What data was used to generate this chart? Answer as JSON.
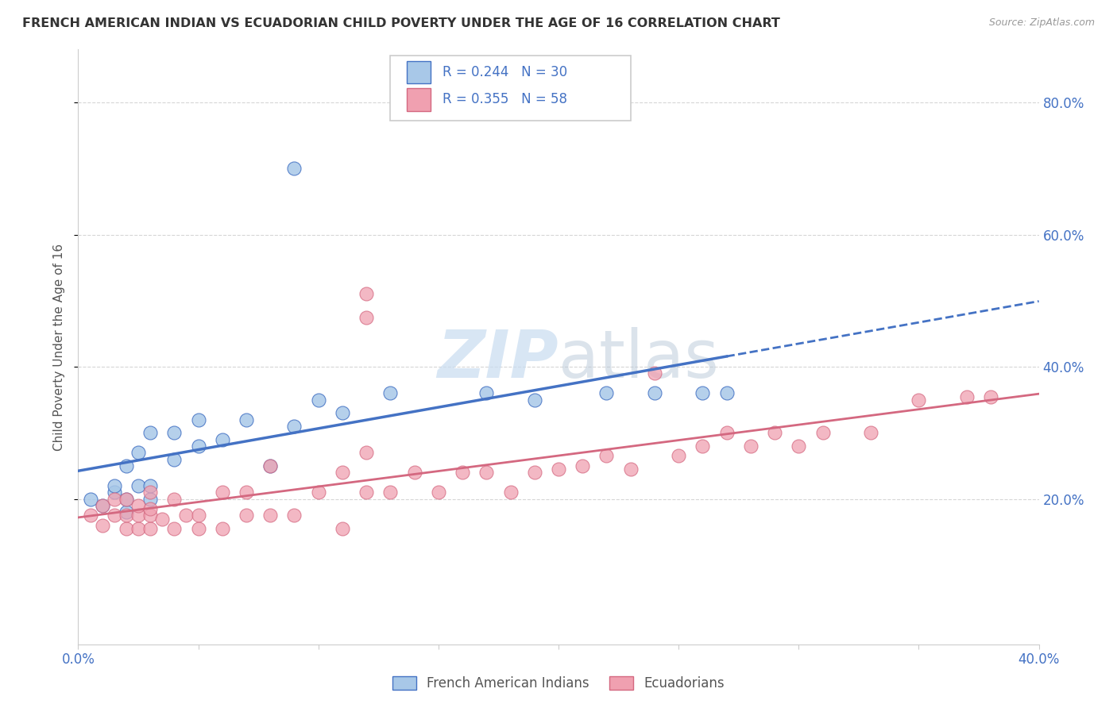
{
  "title": "FRENCH AMERICAN INDIAN VS ECUADORIAN CHILD POVERTY UNDER THE AGE OF 16 CORRELATION CHART",
  "source": "Source: ZipAtlas.com",
  "ylabel": "Child Poverty Under the Age of 16",
  "ytick_labels": [
    "20.0%",
    "40.0%",
    "60.0%",
    "80.0%"
  ],
  "ytick_values": [
    0.2,
    0.4,
    0.6,
    0.8
  ],
  "xlim": [
    0.0,
    0.4
  ],
  "ylim": [
    -0.02,
    0.88
  ],
  "legend1_r": "0.244",
  "legend1_n": "30",
  "legend2_r": "0.355",
  "legend2_n": "58",
  "color_blue": "#A8C8E8",
  "color_pink": "#F0A0B0",
  "line_blue": "#4472C4",
  "line_pink": "#D46880",
  "text_blue": "#4472C4",
  "watermark_color": "#C8DCF0",
  "blue_x": [
    0.005,
    0.01,
    0.015,
    0.015,
    0.02,
    0.02,
    0.02,
    0.025,
    0.025,
    0.03,
    0.03,
    0.03,
    0.04,
    0.04,
    0.05,
    0.05,
    0.06,
    0.07,
    0.08,
    0.09,
    0.1,
    0.11,
    0.13,
    0.17,
    0.19,
    0.22,
    0.24,
    0.26,
    0.27,
    0.09
  ],
  "blue_y": [
    0.2,
    0.19,
    0.21,
    0.22,
    0.18,
    0.2,
    0.25,
    0.22,
    0.27,
    0.2,
    0.22,
    0.3,
    0.26,
    0.3,
    0.28,
    0.32,
    0.29,
    0.32,
    0.25,
    0.31,
    0.35,
    0.33,
    0.36,
    0.36,
    0.35,
    0.36,
    0.36,
    0.36,
    0.36,
    0.7
  ],
  "pink_x": [
    0.005,
    0.01,
    0.01,
    0.015,
    0.015,
    0.02,
    0.02,
    0.02,
    0.025,
    0.025,
    0.025,
    0.03,
    0.03,
    0.03,
    0.03,
    0.035,
    0.04,
    0.04,
    0.045,
    0.05,
    0.05,
    0.06,
    0.06,
    0.07,
    0.07,
    0.08,
    0.08,
    0.09,
    0.1,
    0.11,
    0.11,
    0.12,
    0.12,
    0.13,
    0.14,
    0.15,
    0.16,
    0.17,
    0.18,
    0.19,
    0.2,
    0.21,
    0.22,
    0.23,
    0.24,
    0.25,
    0.26,
    0.27,
    0.28,
    0.29,
    0.3,
    0.31,
    0.33,
    0.35,
    0.37,
    0.38,
    0.12,
    0.12
  ],
  "pink_y": [
    0.175,
    0.16,
    0.19,
    0.175,
    0.2,
    0.155,
    0.175,
    0.2,
    0.155,
    0.175,
    0.19,
    0.155,
    0.175,
    0.185,
    0.21,
    0.17,
    0.155,
    0.2,
    0.175,
    0.155,
    0.175,
    0.155,
    0.21,
    0.175,
    0.21,
    0.175,
    0.25,
    0.175,
    0.21,
    0.155,
    0.24,
    0.21,
    0.27,
    0.21,
    0.24,
    0.21,
    0.24,
    0.24,
    0.21,
    0.24,
    0.245,
    0.25,
    0.265,
    0.245,
    0.39,
    0.265,
    0.28,
    0.3,
    0.28,
    0.3,
    0.28,
    0.3,
    0.3,
    0.35,
    0.355,
    0.355,
    0.475,
    0.51
  ],
  "grid_color": "#CCCCCC",
  "spine_color": "#CCCCCC"
}
